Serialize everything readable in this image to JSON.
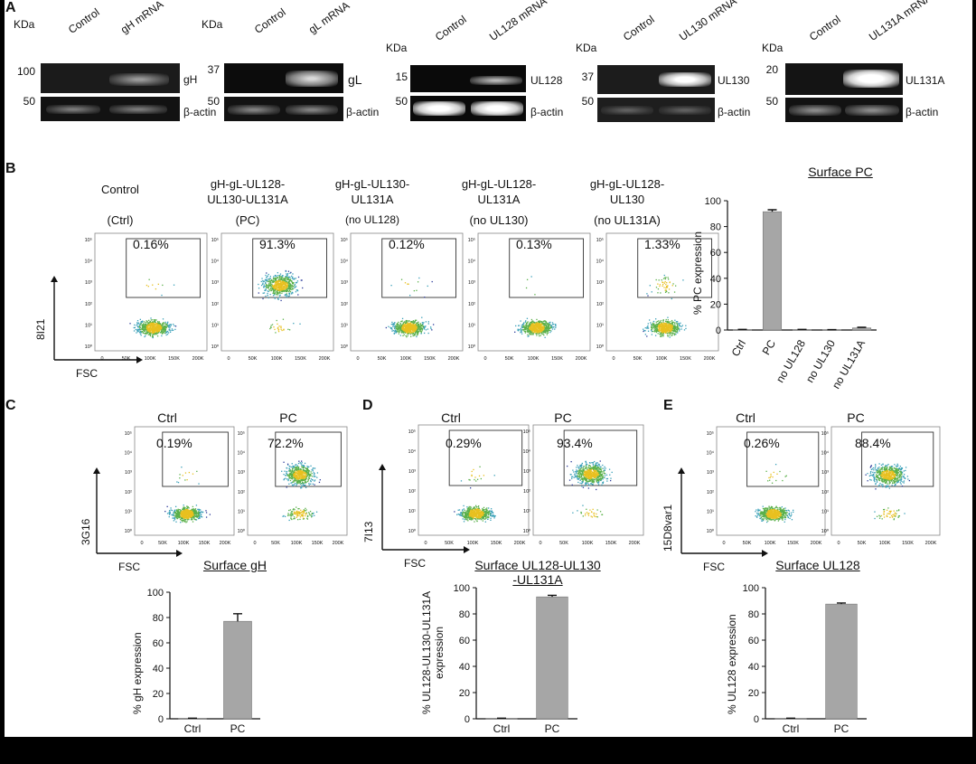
{
  "panel_labels": [
    "A",
    "B",
    "C",
    "D",
    "E"
  ],
  "western_blots": [
    {
      "kda": "KDa",
      "lanes": [
        "Control",
        "gH mRNA"
      ],
      "band_label": "gH",
      "mw_top": "100",
      "mw_bottom": "50",
      "loading_label": "β-actin"
    },
    {
      "kda": "KDa",
      "lanes": [
        "Control",
        "gL mRNA"
      ],
      "band_label": "gL",
      "mw_top": "37",
      "mw_bottom": "50",
      "loading_label": "β-actin"
    },
    {
      "kda": "KDa",
      "lanes": [
        "Control",
        "UL128 mRNA"
      ],
      "band_label": "UL128",
      "mw_top": "15",
      "mw_bottom": "50",
      "loading_label": "β-actin"
    },
    {
      "kda": "KDa",
      "lanes": [
        "Control",
        "UL130 mRNA"
      ],
      "band_label": "UL130",
      "mw_top": "37",
      "mw_bottom": "50",
      "loading_label": "β-actin"
    },
    {
      "kda": "KDa",
      "lanes": [
        "Control",
        "UL131A mRNA"
      ],
      "band_label": "UL131A",
      "mw_top": "20",
      "mw_bottom": "50",
      "loading_label": "β-actin"
    }
  ],
  "flow_common": {
    "y_ticks": [
      "10⁵",
      "10⁴",
      "10³",
      "10²",
      "10¹",
      "10⁰"
    ],
    "x_ticks": [
      "0",
      "50K",
      "100K",
      "150K",
      "200K"
    ],
    "x_axis_label": "FSC"
  },
  "panel_b": {
    "columns": [
      {
        "title": "Control",
        "subtitle": "(Ctrl)",
        "gate_percent": "0.16%"
      },
      {
        "title": "gH-gL-UL128-\nUL130-UL131A",
        "subtitle": "(PC)",
        "gate_percent": "91.3%"
      },
      {
        "title": "gH-gL-UL130-\nUL131A",
        "subtitle": "(no UL128)",
        "gate_percent": "0.12%"
      },
      {
        "title": "gH-gL-UL128-\nUL131A",
        "subtitle": "(no UL130)",
        "gate_percent": "0.13%"
      },
      {
        "title": "gH-gL-UL128-\nUL130",
        "subtitle": "(no UL131A)",
        "gate_percent": "1.33%"
      }
    ],
    "y_axis_label": "8I21"
  },
  "panel_c": {
    "columns": [
      {
        "title": "Ctrl",
        "gate_percent": "0.19%"
      },
      {
        "title": "PC",
        "gate_percent": "72.2%"
      }
    ],
    "y_axis_label": "3G16"
  },
  "panel_d": {
    "columns": [
      {
        "title": "Ctrl",
        "gate_percent": "0.29%"
      },
      {
        "title": "PC",
        "gate_percent": "93.4%"
      }
    ],
    "y_axis_label": "7I13"
  },
  "panel_e": {
    "columns": [
      {
        "title": "Ctrl",
        "gate_percent": "0.26%"
      },
      {
        "title": "PC",
        "gate_percent": "88.4%"
      }
    ],
    "y_axis_label": "15D8var1"
  },
  "chart_data": [
    {
      "type": "bar",
      "title": "Surface PC",
      "categories": [
        "Ctrl",
        "PC",
        "no UL128",
        "no UL130",
        "no UL131A"
      ],
      "values": [
        0.3,
        91.5,
        0.3,
        0.2,
        1.6
      ],
      "errors": [
        0.2,
        1.5,
        0.2,
        0.1,
        0.5
      ],
      "ylabel": "% PC expression",
      "ylim": [
        0,
        100
      ],
      "y_ticks": [
        0,
        20,
        40,
        60,
        80,
        100
      ],
      "bar_color": "#a6a6a6"
    },
    {
      "type": "bar",
      "title": "Surface gH",
      "categories": [
        "Ctrl",
        "PC"
      ],
      "values": [
        0.3,
        77
      ],
      "errors": [
        0.2,
        6
      ],
      "ylabel": "% gH expression",
      "ylim": [
        0,
        100
      ],
      "y_ticks": [
        0,
        20,
        40,
        60,
        80,
        100
      ],
      "bar_color": "#a6a6a6"
    },
    {
      "type": "bar",
      "title": "Surface UL128-UL130\n-UL131A",
      "categories": [
        "Ctrl",
        "PC"
      ],
      "values": [
        0.3,
        93
      ],
      "errors": [
        0.2,
        1.2
      ],
      "ylabel": "% UL128-UL130-UL131A\nexpression",
      "ylim": [
        0,
        100
      ],
      "y_ticks": [
        0,
        20,
        40,
        60,
        80,
        100
      ],
      "bar_color": "#a6a6a6"
    },
    {
      "type": "bar",
      "title": "Surface UL128",
      "categories": [
        "Ctrl",
        "PC"
      ],
      "values": [
        0.3,
        87.5
      ],
      "errors": [
        0.2,
        0.8
      ],
      "ylabel": "% UL128 expression",
      "ylim": [
        0,
        100
      ],
      "y_ticks": [
        0,
        20,
        40,
        60,
        80,
        100
      ],
      "bar_color": "#a6a6a6"
    }
  ]
}
